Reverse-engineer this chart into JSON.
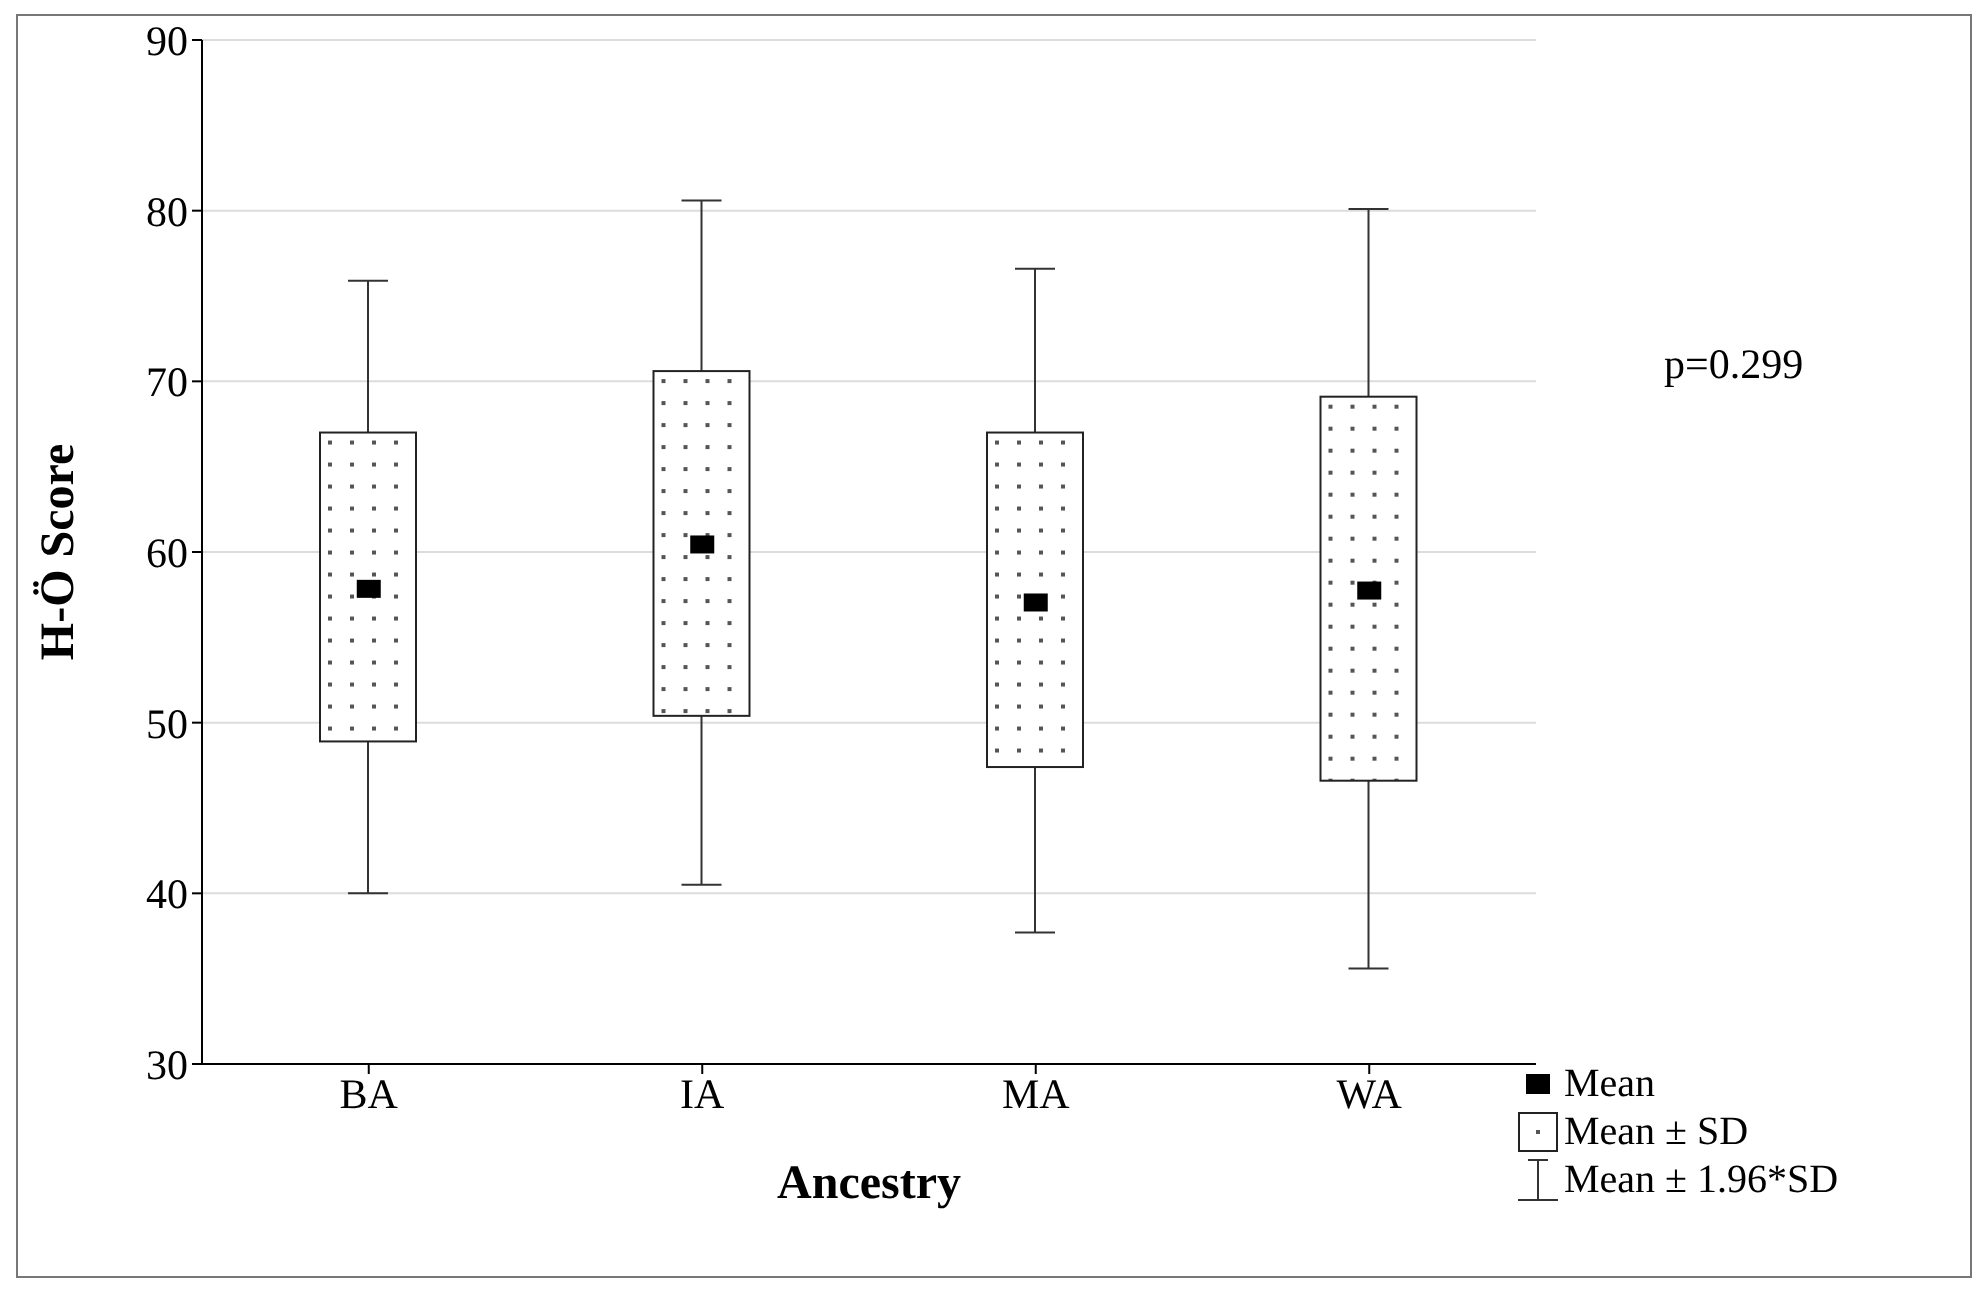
{
  "chart_data": {
    "type": "box",
    "xlabel": "Ancestry",
    "ylabel": "H-Ö Score",
    "categories": [
      "BA",
      "IA",
      "MA",
      "WA"
    ],
    "boxes": [
      {
        "low": 40.0,
        "q1": 48.9,
        "mean": 57.9,
        "q3": 67.0,
        "high": 75.9
      },
      {
        "low": 40.5,
        "q1": 50.4,
        "mean": 60.5,
        "q3": 70.6,
        "high": 80.6
      },
      {
        "low": 37.7,
        "q1": 47.4,
        "mean": 57.1,
        "q3": 67.0,
        "high": 76.6
      },
      {
        "low": 35.6,
        "q1": 46.6,
        "mean": 57.8,
        "q3": 69.1,
        "high": 80.1
      }
    ],
    "ylim": [
      30,
      90
    ],
    "yticks": [
      30,
      40,
      50,
      60,
      70,
      80,
      90
    ],
    "grid": "y",
    "annotations": [
      "p=0.299",
      "Mean",
      "Mean ± SD",
      "Mean ± 1.96*SD"
    ]
  }
}
